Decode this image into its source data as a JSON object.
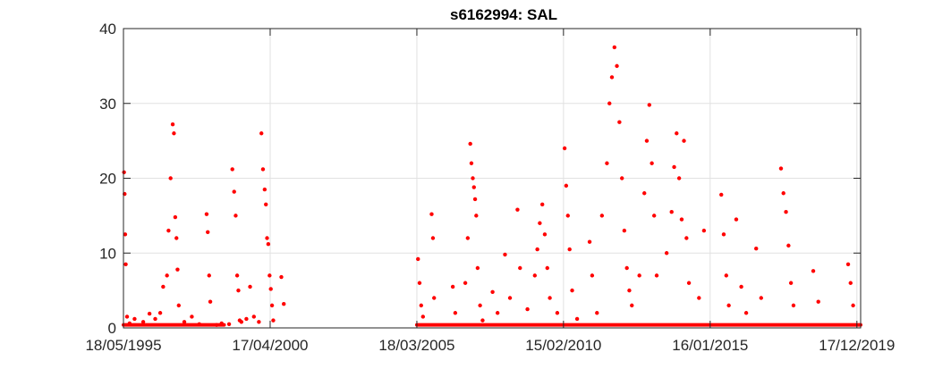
{
  "chart_data": {
    "type": "scatter",
    "title": "s6162994: SAL",
    "xlabel": "",
    "ylabel": "",
    "x_axis": {
      "kind": "date",
      "range": [
        "1995-05-18",
        "2020-02-01"
      ],
      "ticks": [
        {
          "date": "1995-05-18",
          "label": "18/05/1995"
        },
        {
          "date": "2000-04-17",
          "label": "17/04/2000"
        },
        {
          "date": "2005-03-18",
          "label": "18/03/2005"
        },
        {
          "date": "2010-02-15",
          "label": "15/02/2010"
        },
        {
          "date": "2015-01-16",
          "label": "16/01/2015"
        },
        {
          "date": "2019-12-17",
          "label": "17/12/2019"
        }
      ]
    },
    "y_axis": {
      "range": [
        0,
        40
      ],
      "ticks": [
        0,
        10,
        20,
        30,
        40
      ]
    },
    "grid": true,
    "marker_color": "#ff0000",
    "series": [
      {
        "baseline_segments": [
          [
            "1995-05-18",
            "1998-10-01",
            0.4
          ],
          [
            "2005-03-18",
            "2020-02-01",
            0.4
          ]
        ],
        "points": [
          [
            "1995-05-25",
            20.8
          ],
          [
            "1995-06-01",
            17.9
          ],
          [
            "1995-06-08",
            12.5
          ],
          [
            "1995-06-15",
            8.5
          ],
          [
            "1995-07-01",
            1.5
          ],
          [
            "1995-08-01",
            0.6
          ],
          [
            "1995-10-01",
            1.2
          ],
          [
            "1996-01-15",
            0.8
          ],
          [
            "1996-04-01",
            1.9
          ],
          [
            "1996-06-10",
            1.2
          ],
          [
            "1996-08-10",
            2.0
          ],
          [
            "1996-09-15",
            5.5
          ],
          [
            "1996-11-01",
            7.0
          ],
          [
            "1996-11-20",
            13.0
          ],
          [
            "1996-12-15",
            20.0
          ],
          [
            "1997-01-10",
            27.2
          ],
          [
            "1997-01-25",
            26.0
          ],
          [
            "1997-02-10",
            14.8
          ],
          [
            "1997-02-25",
            12.0
          ],
          [
            "1997-03-10",
            7.8
          ],
          [
            "1997-03-25",
            3.0
          ],
          [
            "1997-06-01",
            0.8
          ],
          [
            "1997-09-01",
            1.5
          ],
          [
            "1997-12-01",
            0.5
          ],
          [
            "1998-03-01",
            15.2
          ],
          [
            "1998-03-15",
            12.8
          ],
          [
            "1998-04-01",
            7.0
          ],
          [
            "1998-04-15",
            3.5
          ],
          [
            "1998-07-01",
            0.4
          ],
          [
            "1998-09-01",
            0.6
          ],
          [
            "1998-12-01",
            0.5
          ],
          [
            "1999-01-10",
            21.2
          ],
          [
            "1999-02-01",
            18.2
          ],
          [
            "1999-02-20",
            15.0
          ],
          [
            "1999-03-10",
            7.0
          ],
          [
            "1999-03-25",
            5.0
          ],
          [
            "1999-04-10",
            1.0
          ],
          [
            "1999-05-01",
            0.8
          ],
          [
            "1999-07-01",
            1.2
          ],
          [
            "1999-08-15",
            5.5
          ],
          [
            "1999-10-01",
            1.5
          ],
          [
            "1999-12-01",
            0.8
          ],
          [
            "2000-01-01",
            26.0
          ],
          [
            "2000-01-20",
            21.2
          ],
          [
            "2000-02-10",
            18.5
          ],
          [
            "2000-02-25",
            16.5
          ],
          [
            "2000-03-10",
            12.0
          ],
          [
            "2000-03-25",
            11.2
          ],
          [
            "2000-04-10",
            7.0
          ],
          [
            "2000-04-25",
            5.2
          ],
          [
            "2000-05-10",
            3.0
          ],
          [
            "2000-05-25",
            1.0
          ],
          [
            "2000-09-01",
            6.8
          ],
          [
            "2000-10-01",
            3.2
          ],
          [
            "2005-04-01",
            9.2
          ],
          [
            "2005-04-20",
            6.0
          ],
          [
            "2005-05-10",
            3.0
          ],
          [
            "2005-06-01",
            1.5
          ],
          [
            "2005-09-15",
            15.2
          ],
          [
            "2005-10-01",
            12.0
          ],
          [
            "2005-10-15",
            4.0
          ],
          [
            "2006-06-01",
            5.5
          ],
          [
            "2006-07-01",
            2.0
          ],
          [
            "2006-11-01",
            6.0
          ],
          [
            "2006-12-01",
            12.0
          ],
          [
            "2007-01-01",
            24.6
          ],
          [
            "2007-01-15",
            22.0
          ],
          [
            "2007-02-01",
            20.0
          ],
          [
            "2007-02-15",
            18.8
          ],
          [
            "2007-03-01",
            17.2
          ],
          [
            "2007-03-15",
            15.0
          ],
          [
            "2007-04-01",
            8.0
          ],
          [
            "2007-05-01",
            3.0
          ],
          [
            "2007-06-01",
            1.0
          ],
          [
            "2007-10-01",
            4.8
          ],
          [
            "2007-12-01",
            2.0
          ],
          [
            "2008-03-01",
            9.8
          ],
          [
            "2008-05-01",
            4.0
          ],
          [
            "2008-08-01",
            15.8
          ],
          [
            "2008-09-01",
            8.0
          ],
          [
            "2008-12-01",
            2.5
          ],
          [
            "2009-03-01",
            7.0
          ],
          [
            "2009-04-01",
            10.5
          ],
          [
            "2009-05-01",
            14.0
          ],
          [
            "2009-06-01",
            16.5
          ],
          [
            "2009-07-01",
            12.5
          ],
          [
            "2009-08-01",
            8.0
          ],
          [
            "2009-09-01",
            4.0
          ],
          [
            "2009-12-01",
            2.0
          ],
          [
            "2010-03-01",
            24.0
          ],
          [
            "2010-03-20",
            19.0
          ],
          [
            "2010-04-10",
            15.0
          ],
          [
            "2010-05-01",
            10.5
          ],
          [
            "2010-06-01",
            5.0
          ],
          [
            "2010-08-01",
            1.2
          ],
          [
            "2011-01-01",
            11.5
          ],
          [
            "2011-02-01",
            7.0
          ],
          [
            "2011-04-01",
            2.0
          ],
          [
            "2011-06-01",
            15.0
          ],
          [
            "2011-08-01",
            22.0
          ],
          [
            "2011-09-01",
            30.0
          ],
          [
            "2011-10-01",
            33.5
          ],
          [
            "2011-11-01",
            37.5
          ],
          [
            "2011-12-01",
            35.0
          ],
          [
            "2012-01-01",
            27.5
          ],
          [
            "2012-02-01",
            20.0
          ],
          [
            "2012-03-01",
            13.0
          ],
          [
            "2012-04-01",
            8.0
          ],
          [
            "2012-05-01",
            5.0
          ],
          [
            "2012-06-01",
            3.0
          ],
          [
            "2012-09-01",
            7.0
          ],
          [
            "2012-11-01",
            18.0
          ],
          [
            "2012-12-01",
            25.0
          ],
          [
            "2013-01-01",
            29.8
          ],
          [
            "2013-02-01",
            22.0
          ],
          [
            "2013-03-01",
            15.0
          ],
          [
            "2013-04-01",
            7.0
          ],
          [
            "2013-08-01",
            10.0
          ],
          [
            "2013-10-01",
            15.5
          ],
          [
            "2013-11-01",
            21.5
          ],
          [
            "2013-12-01",
            26.0
          ],
          [
            "2014-01-01",
            20.0
          ],
          [
            "2014-02-01",
            14.5
          ],
          [
            "2014-03-01",
            25.0
          ],
          [
            "2014-04-01",
            12.0
          ],
          [
            "2014-05-01",
            6.0
          ],
          [
            "2014-09-01",
            4.0
          ],
          [
            "2014-11-01",
            13.0
          ],
          [
            "2015-06-01",
            17.8
          ],
          [
            "2015-07-01",
            12.5
          ],
          [
            "2015-08-01",
            7.0
          ],
          [
            "2015-09-01",
            3.0
          ],
          [
            "2015-12-01",
            14.5
          ],
          [
            "2016-02-01",
            5.5
          ],
          [
            "2016-04-01",
            2.0
          ],
          [
            "2016-08-01",
            10.6
          ],
          [
            "2016-10-01",
            4.0
          ],
          [
            "2017-06-01",
            21.3
          ],
          [
            "2017-07-01",
            18.0
          ],
          [
            "2017-08-01",
            15.5
          ],
          [
            "2017-09-01",
            11.0
          ],
          [
            "2017-10-01",
            6.0
          ],
          [
            "2017-11-01",
            3.0
          ],
          [
            "2018-07-01",
            7.6
          ],
          [
            "2018-09-01",
            3.5
          ],
          [
            "2019-09-01",
            8.5
          ],
          [
            "2019-10-01",
            6.0
          ],
          [
            "2019-11-01",
            3.0
          ]
        ]
      }
    ]
  }
}
